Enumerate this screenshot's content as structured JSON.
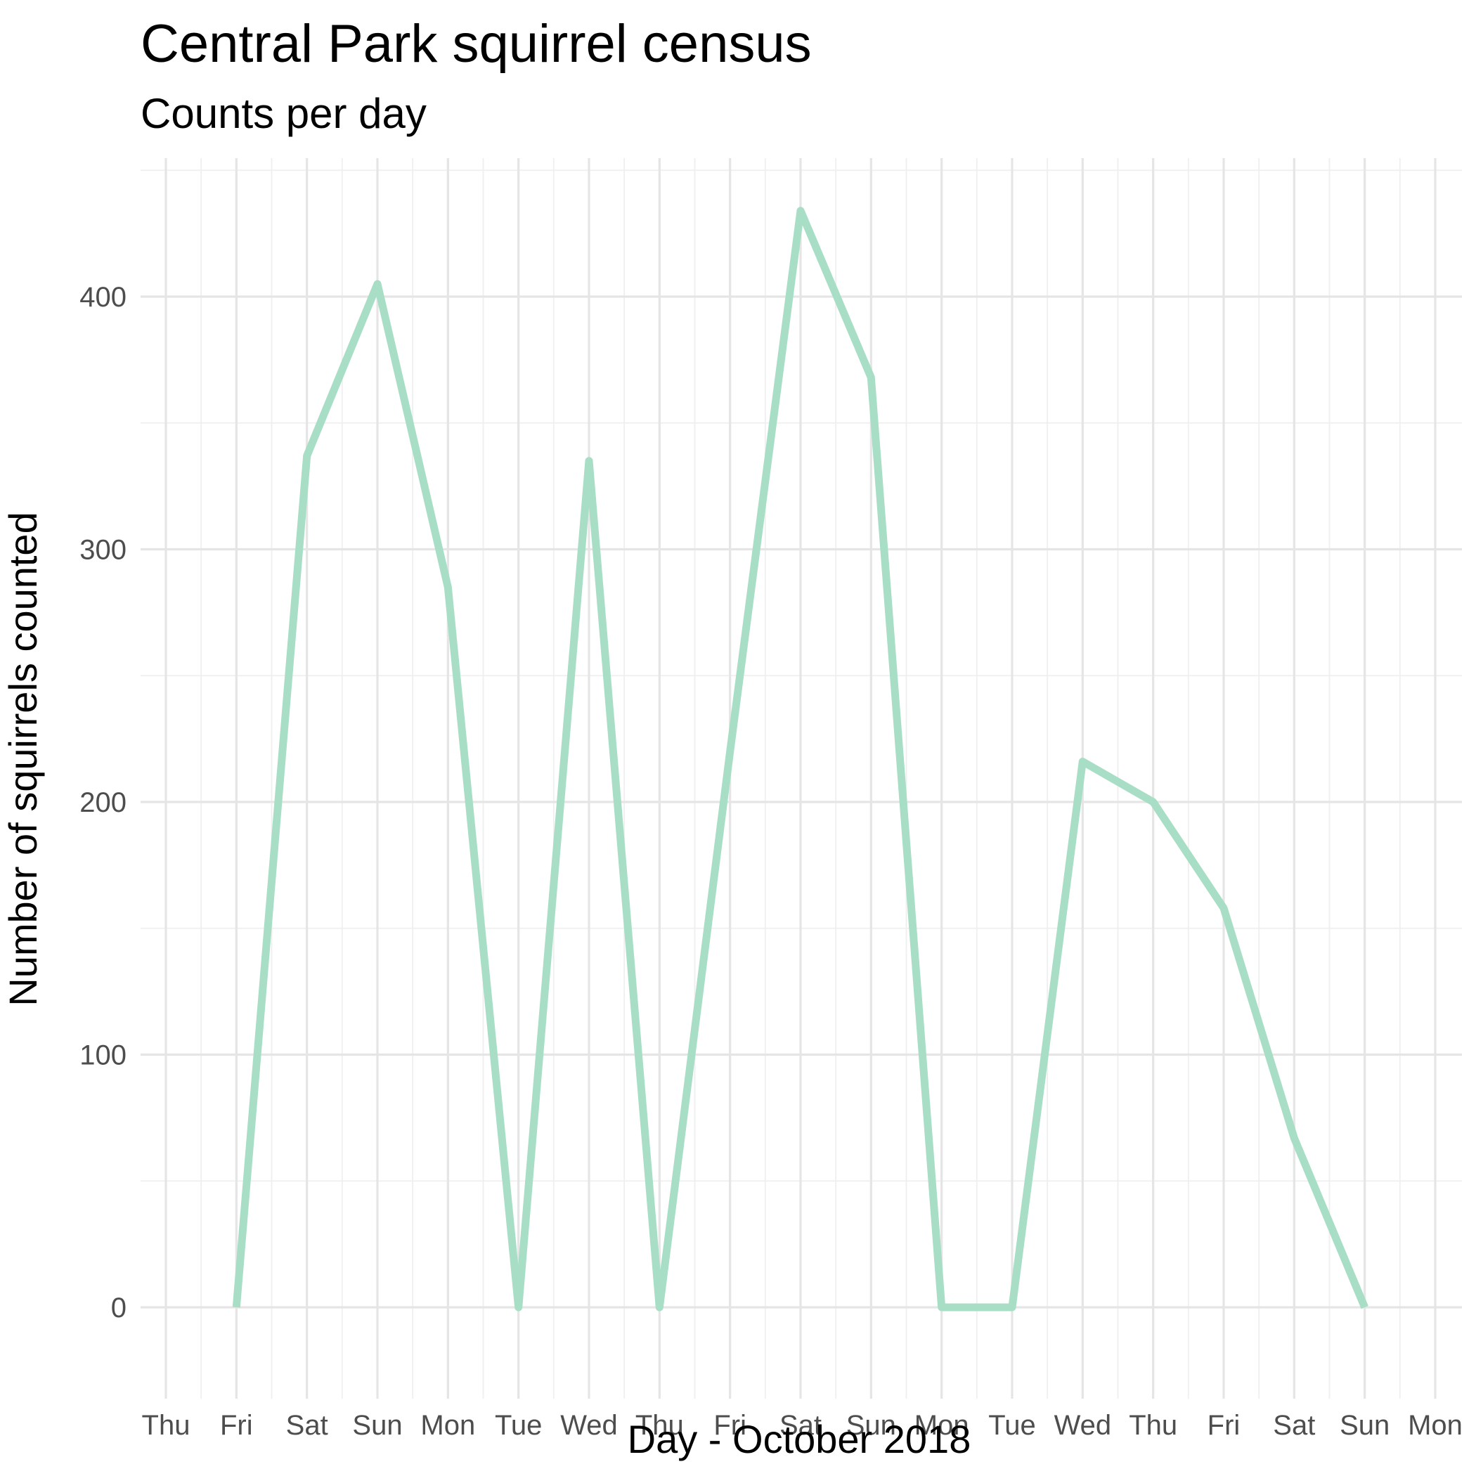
{
  "chart_data": {
    "type": "line",
    "title": "Central Park squirrel census",
    "subtitle": "Counts per day",
    "xlabel": "Day - October 2018",
    "ylabel": "Number of squirrels counted",
    "x_tick_labels": [
      "Thu",
      "Fri",
      "Sat",
      "Sun",
      "Mon",
      "Tue",
      "Wed",
      "Thu",
      "Fri",
      "Sat",
      "Sun",
      "Mon",
      "Tue",
      "Wed",
      "Thu",
      "Fri",
      "Sat",
      "Sun",
      "Mon"
    ],
    "y_ticks": [
      0,
      100,
      200,
      300,
      400
    ],
    "ylim": [
      -30,
      450
    ],
    "grid": true,
    "series": [
      {
        "color": "#a8dec5",
        "points": [
          {
            "day": "Fri",
            "value": 0
          },
          {
            "day": "Sat",
            "value": 337
          },
          {
            "day": "Sun",
            "value": 405
          },
          {
            "day": "Mon",
            "value": 285
          },
          {
            "day": "Tue",
            "value": 0
          },
          {
            "day": "Wed",
            "value": 335
          },
          {
            "day": "Thu",
            "value": 0
          },
          {
            "day": "Fri",
            "value": 220
          },
          {
            "day": "Sat",
            "value": 434
          },
          {
            "day": "Sun",
            "value": 368
          },
          {
            "day": "Mon",
            "value": 0
          },
          {
            "day": "Tue",
            "value": 0
          },
          {
            "day": "Wed",
            "value": 216
          },
          {
            "day": "Thu",
            "value": 200
          },
          {
            "day": "Fri",
            "value": 158
          },
          {
            "day": "Sat",
            "value": 67
          },
          {
            "day": "Sun",
            "value": 0
          }
        ]
      }
    ]
  }
}
